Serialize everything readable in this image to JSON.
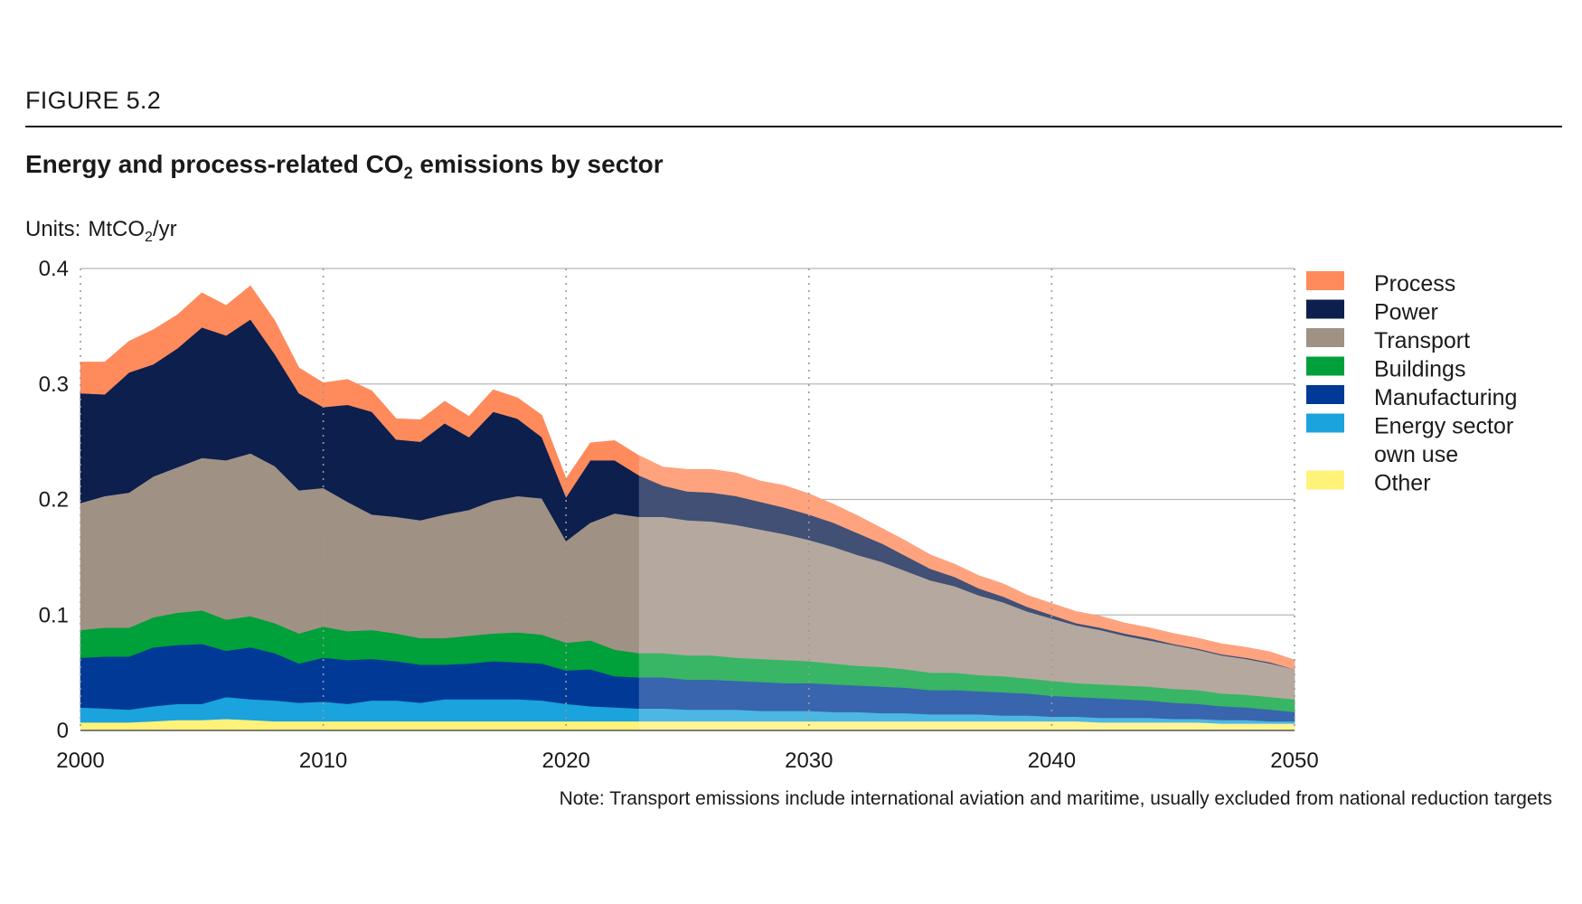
{
  "figure_label": "FIGURE 5.2",
  "note": "Note: Transport emissions include international aviation and maritime, usually excluded from national reduction targets",
  "chart_data": {
    "type": "area",
    "stacked": true,
    "title_main": "Energy and process-related CO",
    "title_sub": "2",
    "title_tail": " emissions by sector",
    "units_label": "Units:",
    "units_value_main": "MtCO",
    "units_value_sub": "2",
    "units_value_tail": "/yr",
    "xlim": [
      2000,
      2050
    ],
    "ylim": [
      0,
      0.4
    ],
    "x_ticks": [
      "2000",
      "2010",
      "2020",
      "2030",
      "2040",
      "2050"
    ],
    "y_ticks": [
      "0",
      "0.1",
      "0.2",
      "0.3",
      "0.4"
    ],
    "projection_start": 2023,
    "grid": true,
    "legend_position": "right",
    "x": [
      2000,
      2001,
      2002,
      2003,
      2004,
      2005,
      2006,
      2007,
      2008,
      2009,
      2010,
      2011,
      2012,
      2013,
      2014,
      2015,
      2016,
      2017,
      2018,
      2019,
      2020,
      2021,
      2022,
      2023,
      2024,
      2025,
      2026,
      2027,
      2028,
      2029,
      2030,
      2031,
      2032,
      2033,
      2034,
      2035,
      2036,
      2037,
      2038,
      2039,
      2040,
      2041,
      2042,
      2043,
      2044,
      2045,
      2046,
      2047,
      2048,
      2049,
      2050
    ],
    "series": [
      {
        "name": "Other",
        "color": "#fff27a",
        "values": [
          0.007,
          0.007,
          0.007,
          0.008,
          0.009,
          0.009,
          0.01,
          0.009,
          0.008,
          0.008,
          0.008,
          0.008,
          0.008,
          0.008,
          0.008,
          0.008,
          0.008,
          0.008,
          0.008,
          0.008,
          0.008,
          0.008,
          0.008,
          0.008,
          0.008,
          0.008,
          0.008,
          0.008,
          0.008,
          0.008,
          0.008,
          0.008,
          0.008,
          0.008,
          0.008,
          0.008,
          0.008,
          0.008,
          0.008,
          0.008,
          0.008,
          0.008,
          0.007,
          0.007,
          0.007,
          0.007,
          0.007,
          0.006,
          0.006,
          0.006,
          0.006
        ]
      },
      {
        "name": "Energy sector own use",
        "color": "#1aa3dc",
        "values": [
          0.013,
          0.012,
          0.011,
          0.013,
          0.014,
          0.014,
          0.019,
          0.018,
          0.018,
          0.016,
          0.017,
          0.015,
          0.018,
          0.018,
          0.016,
          0.019,
          0.019,
          0.019,
          0.019,
          0.018,
          0.015,
          0.013,
          0.012,
          0.011,
          0.011,
          0.01,
          0.01,
          0.01,
          0.009,
          0.009,
          0.009,
          0.008,
          0.008,
          0.007,
          0.007,
          0.006,
          0.006,
          0.006,
          0.005,
          0.005,
          0.004,
          0.004,
          0.004,
          0.004,
          0.004,
          0.003,
          0.003,
          0.003,
          0.003,
          0.002,
          0.002
        ]
      },
      {
        "name": "Manufacturing",
        "color": "#003a96",
        "values": [
          0.043,
          0.045,
          0.046,
          0.051,
          0.051,
          0.052,
          0.04,
          0.045,
          0.041,
          0.034,
          0.038,
          0.038,
          0.036,
          0.034,
          0.033,
          0.03,
          0.031,
          0.033,
          0.032,
          0.032,
          0.029,
          0.032,
          0.027,
          0.027,
          0.027,
          0.026,
          0.026,
          0.025,
          0.025,
          0.024,
          0.024,
          0.024,
          0.023,
          0.023,
          0.022,
          0.021,
          0.021,
          0.02,
          0.02,
          0.019,
          0.018,
          0.017,
          0.017,
          0.016,
          0.015,
          0.014,
          0.013,
          0.012,
          0.011,
          0.01,
          0.008
        ]
      },
      {
        "name": "Buildings",
        "color": "#00a03a",
        "values": [
          0.024,
          0.025,
          0.025,
          0.026,
          0.028,
          0.029,
          0.027,
          0.027,
          0.026,
          0.026,
          0.027,
          0.025,
          0.025,
          0.024,
          0.023,
          0.023,
          0.024,
          0.024,
          0.026,
          0.025,
          0.024,
          0.025,
          0.023,
          0.021,
          0.021,
          0.021,
          0.021,
          0.02,
          0.02,
          0.02,
          0.019,
          0.018,
          0.017,
          0.017,
          0.016,
          0.015,
          0.015,
          0.014,
          0.014,
          0.013,
          0.013,
          0.012,
          0.012,
          0.012,
          0.012,
          0.012,
          0.012,
          0.011,
          0.011,
          0.011,
          0.011
        ]
      },
      {
        "name": "Transport",
        "color": "#a09185",
        "values": [
          0.11,
          0.114,
          0.117,
          0.122,
          0.126,
          0.132,
          0.138,
          0.141,
          0.136,
          0.124,
          0.12,
          0.112,
          0.1,
          0.101,
          0.102,
          0.107,
          0.109,
          0.115,
          0.118,
          0.118,
          0.088,
          0.102,
          0.118,
          0.118,
          0.118,
          0.117,
          0.116,
          0.115,
          0.112,
          0.109,
          0.105,
          0.101,
          0.096,
          0.091,
          0.085,
          0.08,
          0.075,
          0.069,
          0.064,
          0.058,
          0.054,
          0.05,
          0.047,
          0.043,
          0.04,
          0.038,
          0.035,
          0.033,
          0.031,
          0.029,
          0.026
        ]
      },
      {
        "name": "Power",
        "color": "#0c1f4d",
        "values": [
          0.095,
          0.088,
          0.104,
          0.097,
          0.103,
          0.113,
          0.108,
          0.116,
          0.097,
          0.084,
          0.07,
          0.084,
          0.089,
          0.067,
          0.068,
          0.079,
          0.063,
          0.077,
          0.067,
          0.053,
          0.038,
          0.054,
          0.046,
          0.036,
          0.027,
          0.025,
          0.025,
          0.025,
          0.024,
          0.023,
          0.022,
          0.021,
          0.019,
          0.016,
          0.013,
          0.01,
          0.008,
          0.006,
          0.005,
          0.004,
          0.003,
          0.002,
          0.002,
          0.002,
          0.002,
          0.001,
          0.001,
          0.001,
          0.001,
          0.001,
          0.0
        ]
      },
      {
        "name": "Process",
        "color": "#ff8a5c",
        "values": [
          0.027,
          0.028,
          0.027,
          0.03,
          0.029,
          0.03,
          0.026,
          0.029,
          0.029,
          0.022,
          0.021,
          0.022,
          0.018,
          0.018,
          0.019,
          0.019,
          0.018,
          0.019,
          0.018,
          0.019,
          0.016,
          0.015,
          0.017,
          0.017,
          0.016,
          0.019,
          0.02,
          0.02,
          0.018,
          0.019,
          0.018,
          0.016,
          0.015,
          0.013,
          0.013,
          0.012,
          0.011,
          0.011,
          0.011,
          0.01,
          0.01,
          0.01,
          0.01,
          0.009,
          0.009,
          0.009,
          0.009,
          0.009,
          0.009,
          0.009,
          0.008
        ]
      }
    ],
    "legend": [
      {
        "label": "Process",
        "color": "#ff8a5c"
      },
      {
        "label": "Power",
        "color": "#0c1f4d"
      },
      {
        "label": "Transport",
        "color": "#a09185"
      },
      {
        "label": "Buildings",
        "color": "#00a03a"
      },
      {
        "label": "Manufacturing",
        "color": "#003a96"
      },
      {
        "label": "Energy sector",
        "label2": "own use",
        "color": "#1aa3dc"
      },
      {
        "label": "Other",
        "color": "#fff27a"
      }
    ]
  }
}
